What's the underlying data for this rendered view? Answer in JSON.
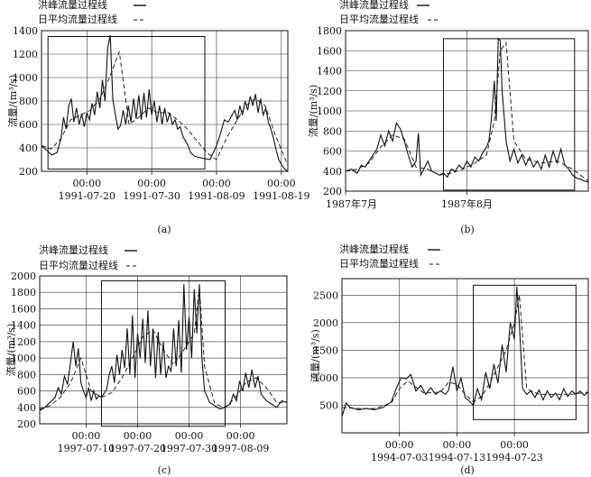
{
  "legend": {
    "peak_label": "洪峰流量过程线",
    "daily_label": "日平均流量过程线"
  },
  "chart_data": [
    {
      "id": "a",
      "type": "line",
      "caption": "(a)",
      "xlabel": "",
      "ylabel": "流量/(m³/s)",
      "ylim": [
        200,
        1400
      ],
      "yticks": [
        200,
        400,
        600,
        800,
        1000,
        1200,
        1400
      ],
      "xlim": [
        0,
        38
      ],
      "xticks": [
        {
          "x": 7,
          "l1": "00:00",
          "l2": "1991-07-20"
        },
        {
          "x": 17,
          "l1": "00:00",
          "l2": "1991-07-30"
        },
        {
          "x": 27,
          "l1": "00:00",
          "l2": "1991-08-09"
        },
        {
          "x": 37,
          "l1": "00:00",
          "l2": "1991-08-19"
        }
      ],
      "highlight": {
        "x0": 1,
        "x1": 25.2,
        "y0": 220,
        "y1": 1350
      },
      "series": [
        {
          "role": "peak",
          "legend": "洪峰流量过程线",
          "style": "solid",
          "x": [
            0,
            0.8,
            1.6,
            2.4,
            3,
            3.4,
            3.8,
            4.2,
            4.6,
            5,
            5.4,
            5.8,
            6.2,
            6.6,
            7,
            7.4,
            7.8,
            8.2,
            8.6,
            9,
            9.4,
            9.8,
            10.2,
            10.6,
            11,
            11.4,
            11.8,
            12.2,
            12.6,
            13,
            13.4,
            13.8,
            14.2,
            14.6,
            15,
            15.4,
            15.8,
            16.2,
            16.6,
            17,
            17.4,
            17.8,
            18.2,
            18.6,
            19,
            19.4,
            19.8,
            20.2,
            20.6,
            21,
            21.4,
            21.8,
            22.2,
            22.6,
            23,
            23.6,
            24.2,
            25,
            26,
            27,
            27.6,
            28.2,
            28.8,
            29.4,
            29.8,
            30.2,
            30.6,
            31,
            31.4,
            31.8,
            32.2,
            32.6,
            33,
            33.4,
            33.8,
            34.2,
            34.6,
            35,
            35.4,
            35.8,
            36.2,
            36.6,
            37,
            37.5,
            38
          ],
          "y": [
            420,
            380,
            340,
            360,
            480,
            660,
            560,
            760,
            820,
            620,
            740,
            600,
            690,
            580,
            700,
            640,
            780,
            680,
            880,
            740,
            980,
            800,
            1250,
            1360,
            820,
            680,
            560,
            590,
            720,
            600,
            760,
            620,
            820,
            650,
            850,
            640,
            870,
            660,
            900,
            680,
            800,
            620,
            760,
            600,
            740,
            620,
            700,
            600,
            640,
            560,
            580,
            500,
            460,
            420,
            360,
            330,
            320,
            310,
            300,
            420,
            520,
            640,
            620,
            680,
            720,
            640,
            760,
            680,
            800,
            720,
            840,
            760,
            860,
            700,
            820,
            680,
            740,
            620,
            560,
            480,
            380,
            300,
            260,
            220,
            200
          ]
        },
        {
          "role": "daily",
          "legend": "日平均流量过程线",
          "style": "dashed",
          "x": [
            0,
            1.5,
            3,
            4.5,
            6,
            7.5,
            9,
            10.5,
            12,
            13.5,
            15,
            16.5,
            18,
            19.5,
            21,
            22.5,
            24,
            25.5,
            27,
            28.5,
            30,
            31.5,
            33,
            34.5,
            36,
            38
          ],
          "y": [
            420,
            390,
            480,
            640,
            680,
            720,
            820,
            1000,
            1220,
            600,
            660,
            740,
            700,
            700,
            640,
            560,
            460,
            360,
            300,
            480,
            620,
            760,
            820,
            760,
            520,
            250
          ]
        }
      ]
    },
    {
      "id": "b",
      "type": "line",
      "caption": "(b)",
      "xlabel": "",
      "ylabel": "流量/(m³/s)",
      "ylim": [
        200,
        1800
      ],
      "yticks": [
        200,
        400,
        600,
        800,
        1000,
        1200,
        1400,
        1600,
        1800
      ],
      "xlim": [
        0,
        62
      ],
      "xticks": [
        {
          "x": 0,
          "l1": "",
          "l2": "1987年7月"
        },
        {
          "x": 31,
          "l1": "",
          "l2": "1987年8月"
        }
      ],
      "highlight": {
        "x0": 25,
        "x1": 58.5,
        "y0": 210,
        "y1": 1720
      },
      "series": [
        {
          "role": "peak",
          "legend": "洪峰流量过程线",
          "style": "solid",
          "x": [
            0,
            1.5,
            3,
            4,
            5,
            6,
            7,
            8,
            9,
            10,
            11,
            12,
            13,
            14,
            15,
            16,
            17,
            18,
            18.6,
            19.2,
            20,
            21,
            22,
            23,
            24,
            25,
            26,
            27,
            28,
            29,
            30,
            31,
            32,
            33,
            34,
            35,
            36,
            36.6,
            37.2,
            38,
            38.5,
            39,
            39.5,
            40,
            41,
            42,
            43,
            44,
            45,
            46,
            47,
            48,
            49,
            50,
            51,
            52,
            53,
            54,
            55,
            56,
            57,
            58,
            59,
            60,
            61,
            62
          ],
          "y": [
            400,
            420,
            380,
            460,
            440,
            500,
            560,
            620,
            760,
            650,
            800,
            700,
            880,
            820,
            700,
            560,
            440,
            500,
            780,
            360,
            420,
            500,
            400,
            380,
            360,
            380,
            340,
            420,
            400,
            460,
            420,
            500,
            440,
            540,
            500,
            580,
            640,
            700,
            900,
            1300,
            900,
            1720,
            1700,
            1200,
            700,
            500,
            620,
            480,
            560,
            460,
            540,
            440,
            500,
            420,
            560,
            440,
            600,
            480,
            620,
            460,
            420,
            360,
            330,
            320,
            300,
            290
          ]
        },
        {
          "role": "daily",
          "legend": "日平均流量过程线",
          "style": "dashed",
          "x": [
            0,
            3,
            6,
            9,
            12,
            15,
            18,
            21,
            24,
            27,
            30,
            33,
            36,
            38,
            39.5,
            41,
            43,
            46,
            50,
            54,
            58,
            62
          ],
          "y": [
            400,
            420,
            480,
            640,
            760,
            720,
            440,
            420,
            360,
            380,
            420,
            480,
            560,
            900,
            1600,
            1680,
            700,
            520,
            480,
            500,
            420,
            300
          ]
        }
      ]
    },
    {
      "id": "c",
      "type": "line",
      "caption": "(c)",
      "xlabel": "",
      "ylabel": "流量/(m³/s)",
      "ylim": [
        200,
        2000
      ],
      "yticks": [
        200,
        400,
        600,
        800,
        1000,
        1200,
        1400,
        1600,
        1800,
        2000
      ],
      "xlim": [
        0,
        48
      ],
      "xticks": [
        {
          "x": 9,
          "l1": "00:00",
          "l2": "1997-07-10"
        },
        {
          "x": 19,
          "l1": "00:00",
          "l2": "1997-07-20"
        },
        {
          "x": 29,
          "l1": "00:00",
          "l2": "1997-07-30"
        },
        {
          "x": 39,
          "l1": "00:00",
          "l2": "1997-08-09"
        }
      ],
      "highlight": {
        "x0": 12,
        "x1": 36,
        "y0": 170,
        "y1": 1940
      },
      "series": [
        {
          "role": "peak",
          "legend": "洪峰流量过程线",
          "style": "solid",
          "x": [
            0,
            1,
            2,
            3,
            3.6,
            4.2,
            4.8,
            5.4,
            6,
            6.5,
            7,
            7.5,
            8,
            8.5,
            9,
            9.5,
            10,
            10.5,
            11,
            11.5,
            12,
            13,
            13.5,
            14,
            14.5,
            15,
            15.5,
            16,
            16.5,
            17,
            17.5,
            18,
            18.5,
            19,
            19.5,
            20,
            20.5,
            21,
            21.5,
            22,
            22.5,
            23,
            23.5,
            24,
            24.5,
            25,
            25.5,
            26,
            26.5,
            27,
            27.5,
            28,
            28.5,
            29,
            29.5,
            30,
            30.5,
            31,
            31.5,
            32,
            33,
            34,
            35,
            36,
            37,
            37.6,
            38.2,
            38.8,
            39.4,
            40,
            40.6,
            41.2,
            41.8,
            42.4,
            43,
            44,
            45,
            46,
            47,
            48
          ],
          "y": [
            360,
            400,
            460,
            520,
            640,
            560,
            780,
            680,
            960,
            1200,
            900,
            1120,
            700,
            600,
            520,
            640,
            480,
            600,
            500,
            540,
            520,
            620,
            800,
            900,
            700,
            1040,
            800,
            1100,
            880,
            1360,
            800,
            1520,
            760,
            1300,
            1000,
            1480,
            940,
            1580,
            900,
            1360,
            760,
            1320,
            800,
            1200,
            760,
            900,
            840,
            1360,
            900,
            1460,
            820,
            1900,
            1100,
            1500,
            1000,
            1840,
            1300,
            1900,
            1000,
            600,
            460,
            420,
            380,
            400,
            440,
            560,
            480,
            720,
            600,
            820,
            640,
            860,
            640,
            780,
            560,
            480,
            440,
            400,
            480,
            460
          ]
        },
        {
          "role": "daily",
          "legend": "日平均流量过程线",
          "style": "dashed",
          "x": [
            0,
            2,
            4,
            6,
            8,
            10,
            12,
            14,
            16,
            18,
            20,
            22,
            24,
            26,
            28,
            30,
            31,
            32,
            34,
            36,
            38,
            40,
            42,
            44,
            46,
            48
          ],
          "y": [
            380,
            420,
            520,
            700,
            1000,
            600,
            520,
            580,
            760,
            1000,
            1260,
            1340,
            1100,
            920,
            1100,
            1300,
            1860,
            900,
            440,
            400,
            520,
            700,
            760,
            640,
            460,
            460
          ]
        }
      ]
    },
    {
      "id": "d",
      "type": "line",
      "caption": "(d)",
      "xlabel": "",
      "ylabel": "流量/(m³/s)",
      "ylim": [
        0,
        2800
      ],
      "yticks": [
        500,
        1000,
        1500,
        2000,
        2500
      ],
      "xlim": [
        0,
        30
      ],
      "xticks": [
        {
          "x": 7,
          "l1": "00:00",
          "l2": "1994-07-03"
        },
        {
          "x": 14,
          "l1": "00:00",
          "l2": "1994-07-13"
        },
        {
          "x": 21,
          "l1": "00:00",
          "l2": "1994-07-23"
        }
      ],
      "highlight": {
        "x0": 16,
        "x1": 28.5,
        "y0": 240,
        "y1": 2680
      },
      "series": [
        {
          "role": "peak",
          "legend": "洪峰流量过程线",
          "style": "solid",
          "x": [
            0,
            0.5,
            1,
            2,
            3,
            4,
            5,
            6,
            6.6,
            7.2,
            7.8,
            8.4,
            9,
            9.6,
            10.2,
            10.8,
            11.4,
            12,
            12.6,
            13,
            13.5,
            14,
            14.5,
            15,
            15.5,
            16,
            16.5,
            17,
            17.5,
            18,
            18.5,
            19,
            19.5,
            20,
            20.5,
            21,
            21.3,
            21.6,
            22,
            22.5,
            23,
            23.5,
            24,
            24.5,
            25,
            25.5,
            26,
            26.5,
            27,
            27.5,
            28,
            28.5,
            29,
            29.5,
            30
          ],
          "y": [
            300,
            540,
            460,
            420,
            440,
            420,
            460,
            560,
            800,
            1000,
            980,
            1060,
            760,
            860,
            700,
            820,
            700,
            760,
            700,
            780,
            1200,
            760,
            1000,
            640,
            580,
            500,
            800,
            600,
            1100,
            800,
            1250,
            900,
            1600,
            1100,
            2000,
            1700,
            2650,
            2000,
            800,
            700,
            760,
            640,
            780,
            600,
            760,
            640,
            720,
            600,
            800,
            660,
            760,
            700,
            760,
            680,
            740
          ]
        },
        {
          "role": "daily",
          "legend": "日平均流量过程线",
          "style": "dashed",
          "x": [
            0,
            2,
            4,
            6,
            7,
            8,
            10,
            12,
            13,
            14,
            15,
            16,
            17,
            18,
            19,
            20,
            21,
            21.6,
            22.5,
            24,
            26,
            28,
            30
          ],
          "y": [
            460,
            440,
            440,
            540,
            800,
            940,
            720,
            740,
            920,
            880,
            700,
            560,
            660,
            900,
            1200,
            1500,
            2000,
            2500,
            800,
            700,
            700,
            700,
            740
          ]
        }
      ]
    }
  ]
}
